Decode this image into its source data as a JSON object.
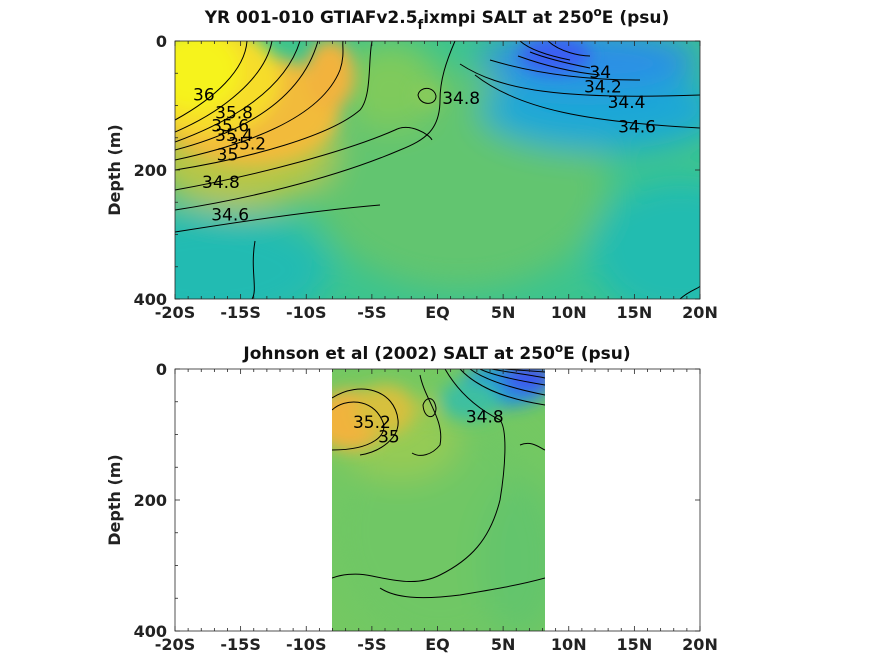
{
  "chart_data": [
    {
      "type": "heatmap",
      "title_main": "YR 001-010 GTIAFv2.5",
      "title_sub": "f",
      "title_rest": "ixmpi SALT at 250",
      "title_sup": "o",
      "title_end": "E (psu)",
      "ylabel": "Depth (m)",
      "x_tick_labels": [
        "-20S",
        "-15S",
        "-10S",
        "-5S",
        "EQ",
        "5N",
        "10N",
        "15N",
        "20N"
      ],
      "x_ticks": [
        -20,
        -15,
        -10,
        -5,
        0,
        5,
        10,
        15,
        20
      ],
      "y_tick_labels": [
        "0",
        "200",
        "400"
      ],
      "y_ticks": [
        0,
        200,
        400
      ],
      "xlim": [
        -20,
        20
      ],
      "ylim": [
        0,
        400
      ],
      "y_reversed": true,
      "data_extent_lat": [
        -20,
        20
      ],
      "colorscale": [
        "#3b4cf0",
        "#2a8fe0",
        "#19b6c3",
        "#3cc48e",
        "#86ca59",
        "#c9c33a",
        "#f4b63a",
        "#f7e12a",
        "#f6f51c"
      ],
      "contour_labels": [
        {
          "text": "36",
          "lat": -17.8,
          "depth": 92
        },
        {
          "text": "35.8",
          "lat": -15.5,
          "depth": 120
        },
        {
          "text": "35.6",
          "lat": -15.8,
          "depth": 140
        },
        {
          "text": "35.4",
          "lat": -15.5,
          "depth": 155
        },
        {
          "text": "35.2",
          "lat": -14.5,
          "depth": 168
        },
        {
          "text": "35",
          "lat": -16,
          "depth": 185
        },
        {
          "text": "34.8",
          "lat": -16.5,
          "depth": 228
        },
        {
          "text": "34.6",
          "lat": -15.8,
          "depth": 278
        },
        {
          "text": "34.8",
          "lat": 1.8,
          "depth": 98
        },
        {
          "text": "34",
          "lat": 12.4,
          "depth": 57
        },
        {
          "text": "34.2",
          "lat": 12.6,
          "depth": 80
        },
        {
          "text": "34.4",
          "lat": 14.4,
          "depth": 104
        },
        {
          "text": "34.6",
          "lat": 15.2,
          "depth": 142
        }
      ]
    },
    {
      "type": "heatmap",
      "title_main": "Johnson et al (2002) SALT at 250",
      "title_sup": "o",
      "title_end": "E (psu)",
      "ylabel": "Depth (m)",
      "x_tick_labels": [
        "-20S",
        "-15S",
        "-10S",
        "-5S",
        "EQ",
        "5N",
        "10N",
        "15N",
        "20N"
      ],
      "x_ticks": [
        -20,
        -15,
        -10,
        -5,
        0,
        5,
        10,
        15,
        20
      ],
      "y_tick_labels": [
        "0",
        "200",
        "400"
      ],
      "y_ticks": [
        0,
        200,
        400
      ],
      "xlim": [
        -20,
        20
      ],
      "ylim": [
        0,
        400
      ],
      "y_reversed": true,
      "data_extent_lat": [
        -8,
        8.3
      ],
      "colorscale": [
        "#3b4cf0",
        "#2a8fe0",
        "#19b6c3",
        "#3cc48e",
        "#86ca59",
        "#c9c33a",
        "#f4b63a",
        "#f7e12a",
        "#f6f51c"
      ],
      "contour_labels": [
        {
          "text": "35.2",
          "lat": -5,
          "depth": 90
        },
        {
          "text": "35",
          "lat": -3.7,
          "depth": 112
        },
        {
          "text": "34.8",
          "lat": 3.6,
          "depth": 82
        }
      ]
    }
  ]
}
